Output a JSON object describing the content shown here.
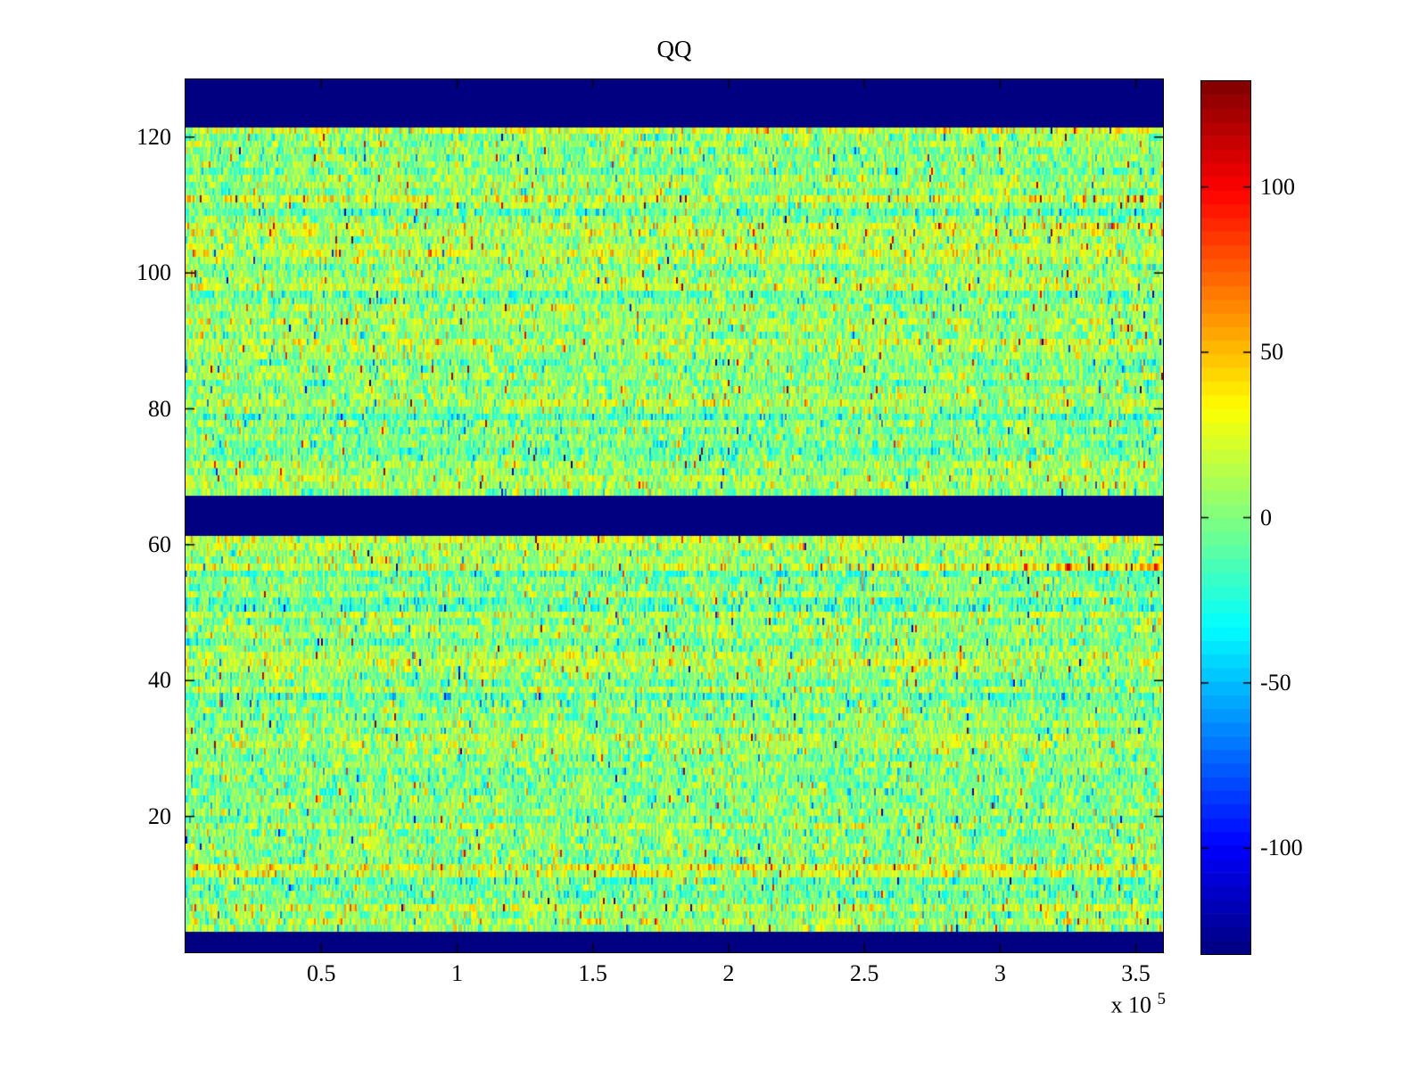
{
  "figure": {
    "background": "#ffffff"
  },
  "chart_data": {
    "type": "heatmap",
    "title": "QQ",
    "x_axis": {
      "range": [
        0,
        360000
      ],
      "ticks": [
        50000,
        100000,
        150000,
        200000,
        250000,
        300000,
        350000
      ],
      "tick_labels": [
        "0.5",
        "1",
        "1.5",
        "2",
        "2.5",
        "3",
        "3.5"
      ],
      "exponent_prefix": "x 10",
      "exponent": "5"
    },
    "y_axis": {
      "range": [
        0,
        128.5
      ],
      "ticks": [
        20,
        40,
        60,
        80,
        100,
        120
      ],
      "tick_labels": [
        "20",
        "40",
        "60",
        "80",
        "100",
        "120"
      ]
    },
    "colorbar": {
      "range": [
        -132,
        132
      ],
      "ticks": [
        -100,
        -50,
        0,
        50,
        100
      ],
      "tick_labels": [
        "-100",
        "-50",
        "0",
        "50",
        "100"
      ],
      "colormap": "jet",
      "segments": 64
    },
    "grid": {
      "rows": 128,
      "cols": 548
    },
    "nodata_row_bands": [
      [
        1,
        3
      ],
      [
        62,
        67
      ],
      [
        122,
        128
      ]
    ],
    "noise": {
      "seed": 1337,
      "mean": 4,
      "std": 21,
      "row_bias_std": 8,
      "spike_prob": 0.013,
      "spike_positive_share": 0.55,
      "spike_min": 45,
      "spike_max": 115
    },
    "special_rows": [
      {
        "row": 121,
        "bias": 13,
        "right_bias": 0
      },
      {
        "row": 118,
        "bias": -9,
        "right_bias": 0
      },
      {
        "row": 111,
        "bias": 10,
        "right_bias": 4
      },
      {
        "row": 107,
        "bias": 15,
        "right_bias": 14
      },
      {
        "row": 103,
        "bias": 11,
        "right_bias": 0
      },
      {
        "row": 99,
        "bias": 7,
        "right_bias": 0
      },
      {
        "row": 86,
        "bias": 6,
        "right_bias": 0
      },
      {
        "row": 73,
        "bias": -11,
        "right_bias": 0
      },
      {
        "row": 61,
        "bias": 8,
        "right_bias": 0
      },
      {
        "row": 57,
        "bias": 15,
        "right_bias": 16
      },
      {
        "row": 55,
        "bias": -9,
        "right_bias": 0
      },
      {
        "row": 44,
        "bias": -7,
        "right_bias": 0
      },
      {
        "row": 31,
        "bias": 10,
        "right_bias": 0
      },
      {
        "row": 27,
        "bias": 8,
        "right_bias": 0
      },
      {
        "row": 12,
        "bias": 6,
        "right_bias": 0
      }
    ]
  },
  "colors": {
    "nodata": "#000080",
    "axis": "#000000",
    "title_text": "#000000"
  }
}
